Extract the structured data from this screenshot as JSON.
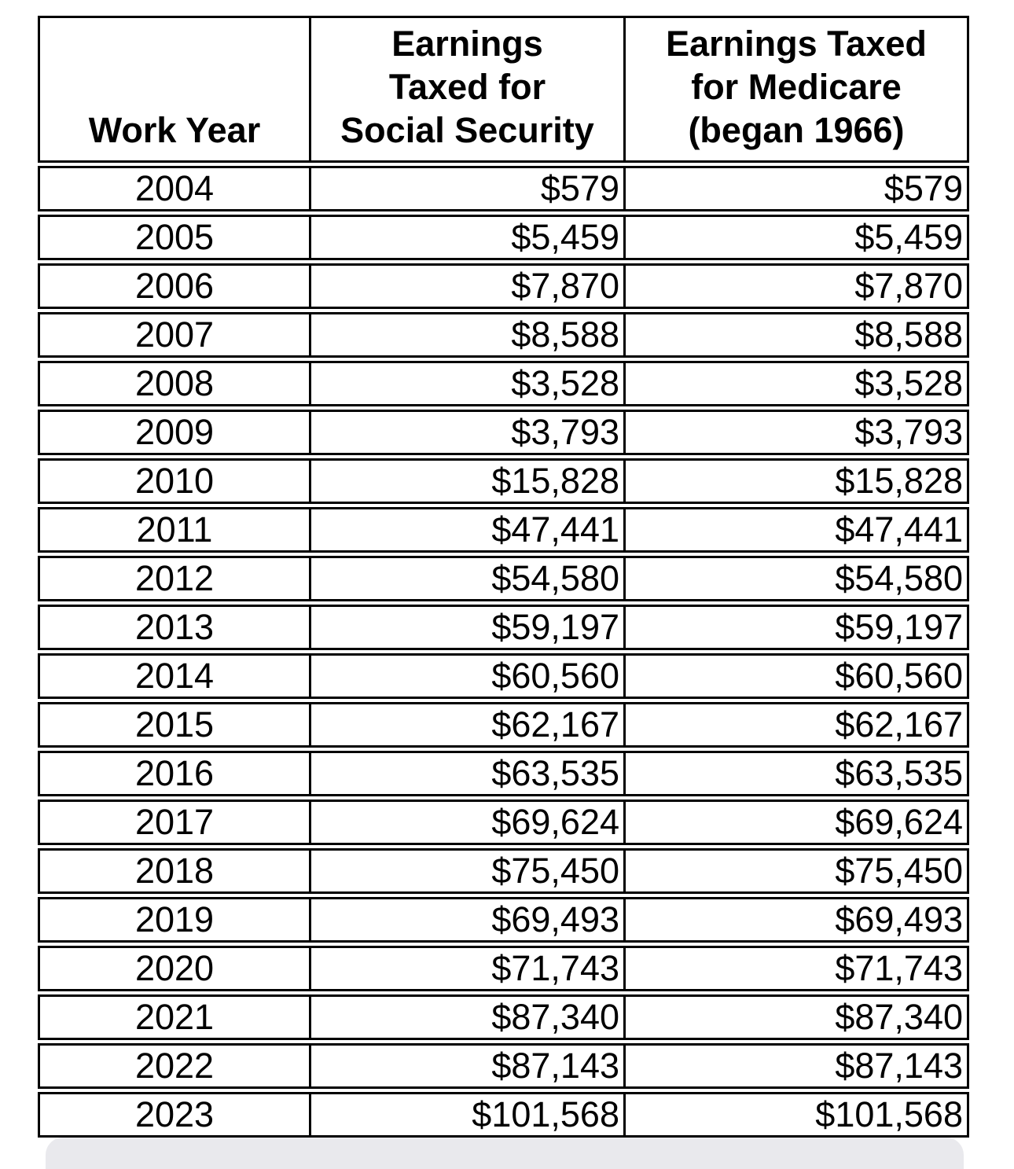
{
  "colors": {
    "background": "#ffffff",
    "border": "#000000",
    "text": "#000000",
    "bottom_sheet": "#e9e9ed"
  },
  "table": {
    "headers": {
      "work_year": "Work Year",
      "social_security": "Earnings\nTaxed for\nSocial Security",
      "medicare": "Earnings Taxed\nfor Medicare\n(began 1966)"
    },
    "rows": [
      {
        "year": "2004",
        "social_security": "$579",
        "medicare": "$579"
      },
      {
        "year": "2005",
        "social_security": "$5,459",
        "medicare": "$5,459"
      },
      {
        "year": "2006",
        "social_security": "$7,870",
        "medicare": "$7,870"
      },
      {
        "year": "2007",
        "social_security": "$8,588",
        "medicare": "$8,588"
      },
      {
        "year": "2008",
        "social_security": "$3,528",
        "medicare": "$3,528"
      },
      {
        "year": "2009",
        "social_security": "$3,793",
        "medicare": "$3,793"
      },
      {
        "year": "2010",
        "social_security": "$15,828",
        "medicare": "$15,828"
      },
      {
        "year": "2011",
        "social_security": "$47,441",
        "medicare": "$47,441"
      },
      {
        "year": "2012",
        "social_security": "$54,580",
        "medicare": "$54,580"
      },
      {
        "year": "2013",
        "social_security": "$59,197",
        "medicare": "$59,197"
      },
      {
        "year": "2014",
        "social_security": "$60,560",
        "medicare": "$60,560"
      },
      {
        "year": "2015",
        "social_security": "$62,167",
        "medicare": "$62,167"
      },
      {
        "year": "2016",
        "social_security": "$63,535",
        "medicare": "$63,535"
      },
      {
        "year": "2017",
        "social_security": "$69,624",
        "medicare": "$69,624"
      },
      {
        "year": "2018",
        "social_security": "$75,450",
        "medicare": "$75,450"
      },
      {
        "year": "2019",
        "social_security": "$69,493",
        "medicare": "$69,493"
      },
      {
        "year": "2020",
        "social_security": "$71,743",
        "medicare": "$71,743"
      },
      {
        "year": "2021",
        "social_security": "$87,340",
        "medicare": "$87,340"
      },
      {
        "year": "2022",
        "social_security": "$87,143",
        "medicare": "$87,143"
      },
      {
        "year": "2023",
        "social_security": "$101,568",
        "medicare": "$101,568"
      }
    ]
  }
}
